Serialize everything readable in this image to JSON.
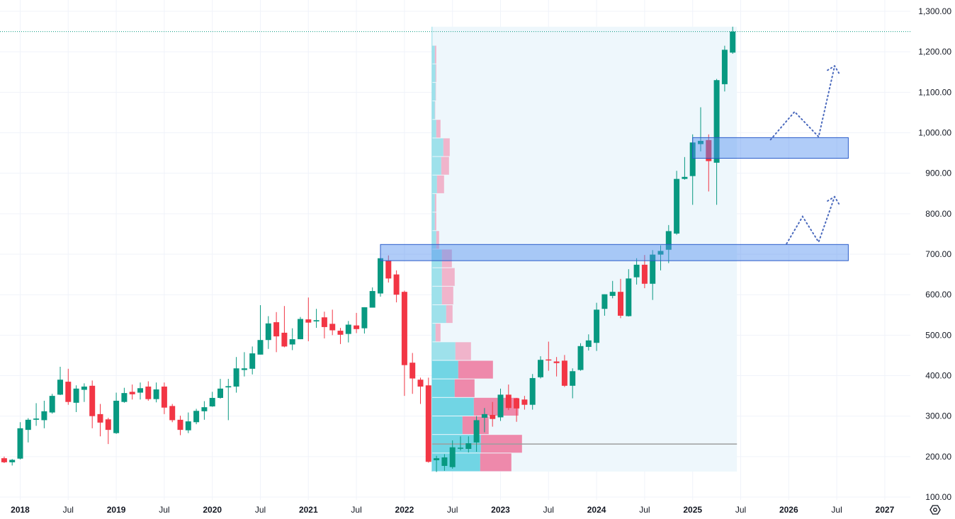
{
  "chart_data": {
    "type": "candlestick",
    "interval": "1M",
    "colors": {
      "up": "#089981",
      "down": "#F23645",
      "zone": "#4F8FF0",
      "zone_border": "#2A5CC9",
      "projection": "#4A69BD",
      "last_price_line": "#089981",
      "poc": "#9E9E9E",
      "profile_up": "#5BCFDF",
      "profile_down": "#EE6D96",
      "profile_up_light": "#8FDDE8",
      "profile_down_light": "#F0A3BE",
      "profile_bg": "#EEF7FC"
    },
    "y_axis": {
      "min": 100,
      "max": 1300,
      "ticks": [
        "1,300.00",
        "1,200.00",
        "1,100.00",
        "1,000.00",
        "900.00",
        "800.00",
        "700.00",
        "600.00",
        "500.00",
        "400.00",
        "300.00",
        "200.00",
        "100.00"
      ],
      "tick_values": [
        1300,
        1200,
        1100,
        1000,
        900,
        800,
        700,
        600,
        500,
        400,
        300,
        200,
        100
      ],
      "grid": true
    },
    "x_axis": {
      "range": [
        "2017-11",
        "2027-04"
      ],
      "ticks": [
        {
          "label": "2018",
          "date": "2018-01",
          "year": true
        },
        {
          "label": "Jul",
          "date": "2018-07"
        },
        {
          "label": "2019",
          "date": "2019-01",
          "year": true
        },
        {
          "label": "Jul",
          "date": "2019-07"
        },
        {
          "label": "2020",
          "date": "2020-01",
          "year": true
        },
        {
          "label": "Jul",
          "date": "2020-07"
        },
        {
          "label": "2021",
          "date": "2021-01",
          "year": true
        },
        {
          "label": "Jul",
          "date": "2021-07"
        },
        {
          "label": "2022",
          "date": "2022-01",
          "year": true
        },
        {
          "label": "Jul",
          "date": "2022-07"
        },
        {
          "label": "2023",
          "date": "2023-01",
          "year": true
        },
        {
          "label": "Jul",
          "date": "2023-07"
        },
        {
          "label": "2024",
          "date": "2024-01",
          "year": true
        },
        {
          "label": "Jul",
          "date": "2024-07"
        },
        {
          "label": "2025",
          "date": "2025-01",
          "year": true
        },
        {
          "label": "Jul",
          "date": "2025-07"
        },
        {
          "label": "2026",
          "date": "2026-01",
          "year": true
        },
        {
          "label": "Jul",
          "date": "2026-07"
        },
        {
          "label": "2027",
          "date": "2027-01",
          "year": true
        }
      ],
      "grid": true
    },
    "candles_start": "2017-11",
    "ohlc": [
      [
        196,
        200,
        184,
        186
      ],
      [
        186,
        194,
        178,
        192
      ],
      [
        195,
        285,
        193,
        270
      ],
      [
        266,
        295,
        235,
        291
      ],
      [
        291,
        332,
        276,
        294
      ],
      [
        290,
        338,
        270,
        312
      ],
      [
        309,
        355,
        306,
        350
      ],
      [
        353,
        422,
        352,
        390
      ],
      [
        385,
        417,
        328,
        335
      ],
      [
        333,
        376,
        310,
        368
      ],
      [
        365,
        381,
        335,
        373
      ],
      [
        375,
        388,
        270,
        300
      ],
      [
        305,
        330,
        250,
        284
      ],
      [
        292,
        296,
        231,
        266
      ],
      [
        258,
        358,
        256,
        338
      ],
      [
        335,
        370,
        333,
        357
      ],
      [
        360,
        378,
        341,
        354
      ],
      [
        358,
        383,
        341,
        369
      ],
      [
        373,
        386,
        338,
        342
      ],
      [
        342,
        383,
        334,
        366
      ],
      [
        373,
        383,
        305,
        321
      ],
      [
        325,
        330,
        285,
        290
      ],
      [
        291,
        301,
        253,
        266
      ],
      [
        265,
        309,
        258,
        287
      ],
      [
        285,
        318,
        280,
        313
      ],
      [
        312,
        337,
        291,
        322
      ],
      [
        324,
        360,
        323,
        345
      ],
      [
        345,
        392,
        343,
        368
      ],
      [
        371,
        392,
        290,
        374
      ],
      [
        373,
        446,
        358,
        418
      ],
      [
        414,
        458,
        398,
        418
      ],
      [
        417,
        472,
        403,
        455
      ],
      [
        452,
        574,
        452,
        488
      ],
      [
        488,
        547,
        466,
        529
      ],
      [
        532,
        557,
        458,
        497
      ],
      [
        506,
        572,
        470,
        472
      ],
      [
        477,
        517,
        463,
        490
      ],
      [
        490,
        545,
        490,
        540
      ],
      [
        539,
        593,
        485,
        531
      ],
      [
        534,
        565,
        518,
        537
      ],
      [
        544,
        558,
        492,
        520
      ],
      [
        528,
        563,
        500,
        512
      ],
      [
        511,
        518,
        478,
        501
      ],
      [
        503,
        535,
        482,
        526
      ],
      [
        524,
        555,
        505,
        515
      ],
      [
        517,
        569,
        504,
        569
      ],
      [
        568,
        618,
        568,
        609
      ],
      [
        603,
        695,
        595,
        690
      ],
      [
        684,
        697,
        630,
        640
      ],
      [
        650,
        660,
        581,
        600
      ],
      [
        607,
        610,
        350,
        426
      ],
      [
        432,
        456,
        355,
        393
      ],
      [
        390,
        395,
        330,
        373
      ],
      [
        376,
        395,
        185,
        187
      ],
      [
        191,
        202,
        162,
        196
      ],
      [
        177,
        206,
        165,
        198
      ],
      [
        174,
        240,
        170,
        223
      ],
      [
        221,
        250,
        215,
        222
      ],
      [
        219,
        250,
        210,
        233
      ],
      [
        235,
        300,
        212,
        290
      ],
      [
        296,
        320,
        260,
        305
      ],
      [
        303,
        335,
        274,
        293
      ],
      [
        297,
        368,
        288,
        353
      ],
      [
        353,
        378,
        315,
        320
      ],
      [
        344,
        345,
        286,
        319
      ],
      [
        341,
        350,
        316,
        328
      ],
      [
        328,
        404,
        316,
        394
      ],
      [
        396,
        448,
        393,
        439
      ],
      [
        440,
        484,
        412,
        438
      ],
      [
        435,
        446,
        398,
        431
      ],
      [
        437,
        451,
        372,
        375
      ],
      [
        375,
        418,
        344,
        411
      ],
      [
        414,
        480,
        412,
        473
      ],
      [
        471,
        502,
        462,
        487
      ],
      [
        481,
        580,
        461,
        563
      ],
      [
        565,
        601,
        548,
        601
      ],
      [
        597,
        634,
        591,
        607
      ],
      [
        607,
        639,
        542,
        548
      ],
      [
        547,
        663,
        546,
        640
      ],
      [
        643,
        690,
        625,
        674
      ],
      [
        674,
        698,
        616,
        627
      ],
      [
        627,
        710,
        587,
        699
      ],
      [
        699,
        722,
        660,
        708
      ],
      [
        711,
        772,
        678,
        757
      ],
      [
        751,
        906,
        748,
        886
      ],
      [
        886,
        940,
        884,
        891
      ],
      [
        893,
        996,
        822,
        976
      ],
      [
        972,
        1063,
        954,
        980
      ],
      [
        982,
        996,
        855,
        930
      ],
      [
        926,
        1133,
        822,
        1130
      ],
      [
        1120,
        1215,
        1102,
        1205
      ],
      [
        1198,
        1262,
        1195,
        1250
      ]
    ],
    "last_price": 1250,
    "volume_profile": {
      "start": "2022-04",
      "end": "2025-06",
      "price_low": 163,
      "price_high": 1216,
      "range_high": 1262,
      "rows_top_to_bottom": [
        {
          "up": 4,
          "down": 2
        },
        {
          "up": 5,
          "down": 1
        },
        {
          "up": 5,
          "down": 0.5
        },
        {
          "up": 4,
          "down": 0.5
        },
        {
          "up": 6,
          "down": 6
        },
        {
          "up": 16,
          "down": 9
        },
        {
          "up": 13,
          "down": 11
        },
        {
          "up": 7,
          "down": 10
        },
        {
          "up": 4,
          "down": 2
        },
        {
          "up": 4,
          "down": 2
        },
        {
          "up": 6,
          "down": 4
        },
        {
          "up": 14,
          "down": 14
        },
        {
          "up": 14,
          "down": 18
        },
        {
          "up": 14,
          "down": 16
        },
        {
          "up": 20,
          "down": 9
        },
        {
          "up": 5,
          "down": 7
        },
        {
          "up": 33,
          "down": 22
        },
        {
          "up": 37,
          "down": 49
        },
        {
          "up": 32,
          "down": 28
        },
        {
          "up": 59,
          "down": 63
        },
        {
          "up": 43,
          "down": 37
        },
        {
          "up": 69,
          "down": 58
        },
        {
          "up": 68,
          "down": 44
        }
      ],
      "value_area_rows": [
        17,
        18,
        19,
        20,
        21,
        22
      ],
      "poc_price": 231
    },
    "zones": [
      {
        "price_low": 684,
        "price_high": 724,
        "start": "2021-10",
        "end": "2026-08"
      },
      {
        "price_low": 937,
        "price_high": 988,
        "start": "2025-01",
        "end": "2026-08"
      }
    ],
    "projections": [
      {
        "points": [
          [
            "2025-11",
            983
          ],
          [
            "2026-02",
            1052
          ],
          [
            "2026-05",
            990
          ],
          [
            "2026-07",
            1165
          ]
        ]
      },
      {
        "points": [
          [
            "2026-01",
            726
          ],
          [
            "2026-03",
            793
          ],
          [
            "2026-05",
            730
          ],
          [
            "2026-07",
            842
          ]
        ]
      }
    ]
  },
  "ui": {
    "settings_icon": "gear-hexagon-icon"
  }
}
